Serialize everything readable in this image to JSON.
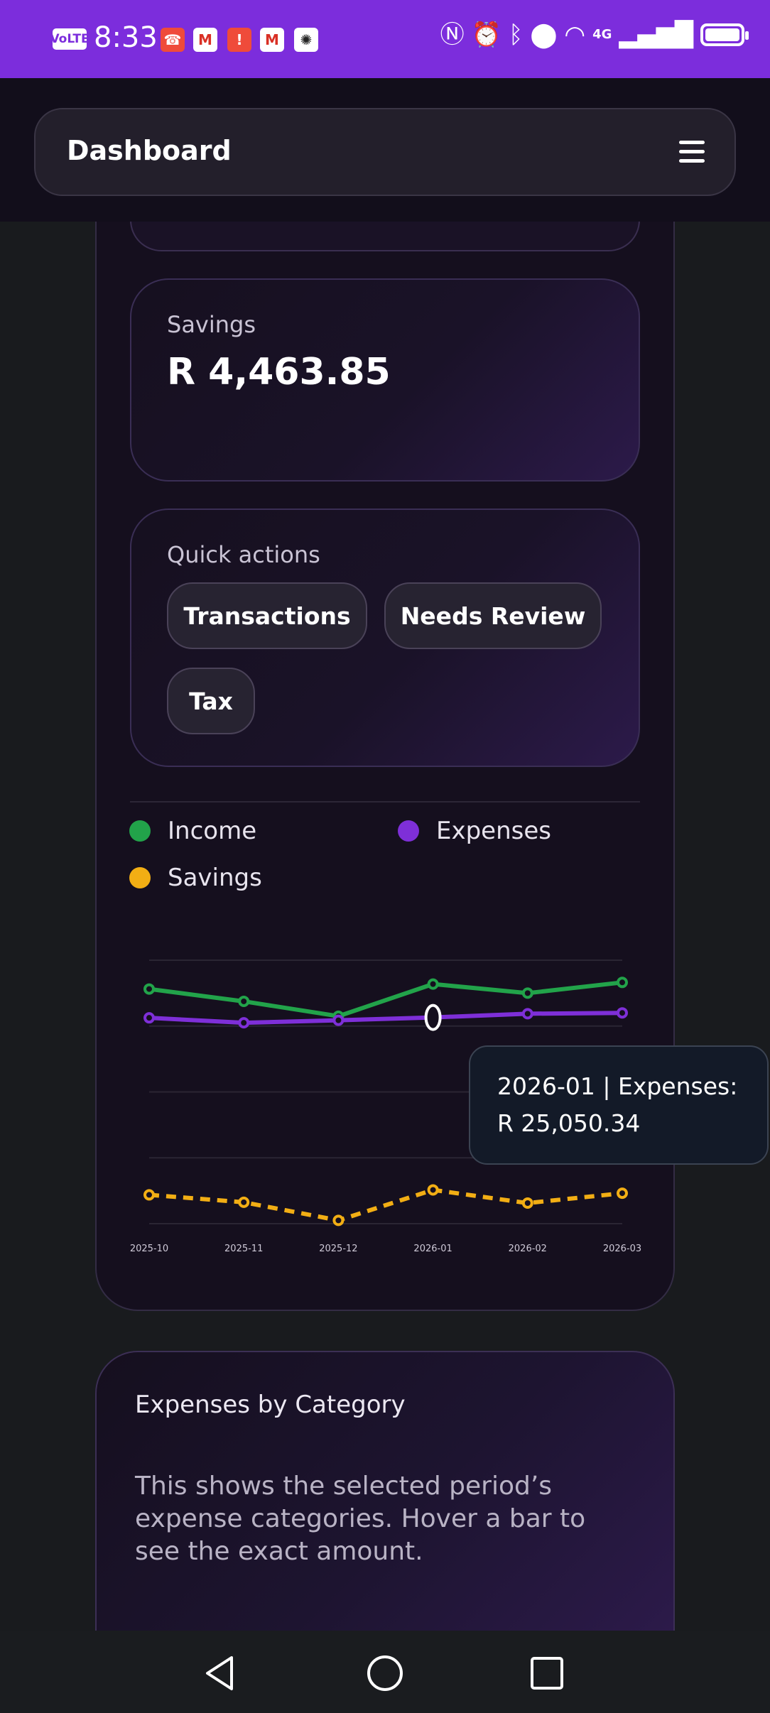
{
  "status_bar": {
    "volte": "VoLTE",
    "time": "8:33",
    "network": "4G"
  },
  "header": {
    "title": "Dashboard"
  },
  "savings": {
    "label": "Savings",
    "value": "R 4,463.85"
  },
  "quick_actions": {
    "label": "Quick actions",
    "buttons": [
      "Transactions",
      "Needs Review",
      "Tax"
    ]
  },
  "legend": [
    {
      "name": "Income",
      "color": "#22a34a"
    },
    {
      "name": "Expenses",
      "color": "#7e2fd8"
    },
    {
      "name": "Savings",
      "color": "#f2ae14"
    }
  ],
  "chart_data": {
    "type": "line",
    "x": [
      "2025-10",
      "2025-11",
      "2025-12",
      "2026-01",
      "2026-02",
      "2026-03"
    ],
    "series": [
      {
        "name": "Income",
        "values": [
          28500,
          27000,
          25200,
          29100,
          28000,
          29300
        ]
      },
      {
        "name": "Expenses",
        "values": [
          25000,
          24400,
          24700,
          25050.34,
          25500,
          25600
        ]
      },
      {
        "name": "Savings",
        "values": [
          3500,
          2600,
          400,
          4100,
          2500,
          3700
        ]
      }
    ],
    "ylim": [
      0,
      32000
    ],
    "grid": true,
    "legend": "top"
  },
  "tooltip": {
    "line1": "2026-01 | Expenses:",
    "line2": "R 25,050.34"
  },
  "category_card": {
    "title": "Expenses by Category",
    "description": "This shows the selected period’s expense categories. Hover a bar to see the exact amount."
  }
}
